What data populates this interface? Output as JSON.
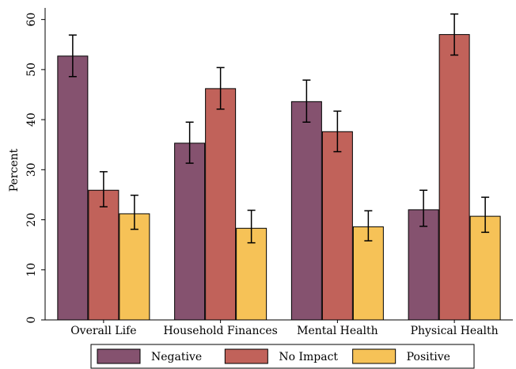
{
  "chart_data": {
    "type": "bar",
    "title": "",
    "xlabel": "",
    "ylabel": "Percent",
    "ylim": [
      0,
      62
    ],
    "yticks": [
      0,
      10,
      20,
      30,
      40,
      50,
      60
    ],
    "grid": false,
    "legend_placement": "bottom",
    "error_bars": true,
    "categories": [
      "Overall Life",
      "Household Finances",
      "Mental Health",
      "Physical Health"
    ],
    "series": [
      {
        "name": "Negative",
        "color": "#85526f",
        "values": [
          52.7,
          35.3,
          43.6,
          22.0
        ],
        "err_low": [
          48.6,
          31.3,
          39.5,
          18.7
        ],
        "err_high": [
          56.9,
          39.5,
          47.9,
          25.9
        ]
      },
      {
        "name": "No Impact",
        "color": "#c1625a",
        "values": [
          25.9,
          46.2,
          37.6,
          57.0
        ],
        "err_low": [
          22.6,
          42.1,
          33.6,
          52.9
        ],
        "err_high": [
          29.6,
          50.4,
          41.7,
          61.1
        ]
      },
      {
        "name": "Positive",
        "color": "#f6c257",
        "values": [
          21.2,
          18.3,
          18.6,
          20.7
        ],
        "err_low": [
          18.1,
          15.4,
          15.8,
          17.5
        ],
        "err_high": [
          24.9,
          21.9,
          21.8,
          24.5
        ]
      }
    ]
  }
}
